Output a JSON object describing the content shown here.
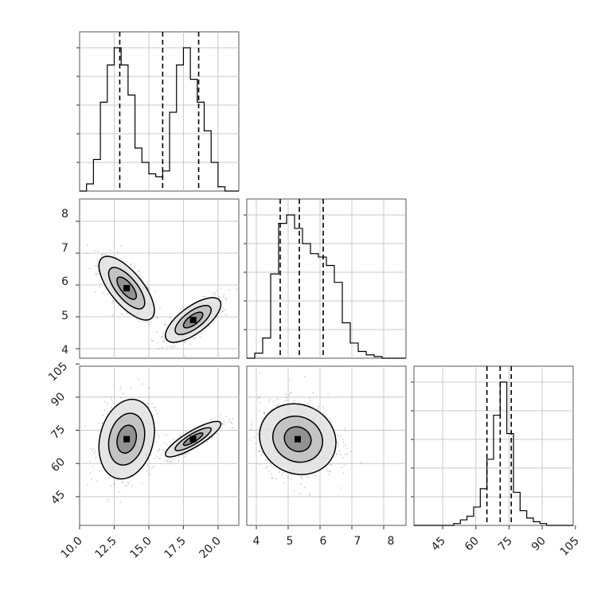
{
  "chart_data": {
    "type": "corner",
    "variables": 3,
    "ticks": {
      "x1": [
        "10.0",
        "12.5",
        "15.0",
        "17.5",
        "20.0"
      ],
      "x2": [
        "4",
        "5",
        "6",
        "7",
        "8"
      ],
      "x3": [
        "45",
        "60",
        "75",
        "90",
        "105"
      ],
      "y2": [
        "4",
        "5",
        "6",
        "7",
        "8"
      ],
      "y3": [
        "45",
        "60",
        "75",
        "90",
        "105"
      ]
    },
    "ranges": {
      "x1": [
        10.0,
        21.5
      ],
      "x2": [
        3.7,
        8.7
      ],
      "x3": [
        32,
        104
      ]
    },
    "quantiles": {
      "x1": [
        12.9,
        16.0,
        18.6
      ],
      "x2": [
        4.75,
        5.35,
        6.1
      ],
      "x3": [
        65,
        71,
        76
      ]
    },
    "hist1": {
      "bin_edges": [
        10.0,
        10.5,
        11.0,
        11.5,
        12.0,
        12.5,
        13.0,
        13.5,
        14.0,
        14.5,
        15.0,
        15.5,
        16.0,
        16.5,
        17.0,
        17.5,
        18.0,
        18.5,
        19.0,
        19.5,
        20.0,
        20.5,
        21.0,
        21.5
      ],
      "counts": [
        0,
        5,
        22,
        62,
        88,
        100,
        88,
        67,
        30,
        20,
        12,
        10,
        14,
        55,
        88,
        100,
        78,
        62,
        42,
        20,
        3,
        0,
        0
      ],
      "max": 100
    },
    "hist2": {
      "bin_edges": [
        3.7,
        3.95,
        4.2,
        4.45,
        4.7,
        4.95,
        5.2,
        5.45,
        5.7,
        5.95,
        6.2,
        6.45,
        6.7,
        6.95,
        7.2,
        7.45,
        7.7,
        7.95,
        8.2,
        8.45,
        8.7
      ],
      "counts": [
        0,
        3,
        12,
        50,
        80,
        85,
        77,
        68,
        62,
        60,
        55,
        45,
        21,
        9,
        4,
        2,
        1,
        0,
        0,
        0
      ],
      "max": 85
    },
    "hist3": {
      "bin_edges": [
        32,
        35,
        38,
        41,
        44,
        47,
        50,
        53,
        56,
        59,
        62,
        65,
        68,
        71,
        74,
        77,
        80,
        83,
        86,
        89,
        92,
        95,
        98,
        101,
        104
      ],
      "counts": [
        0,
        0,
        0,
        0,
        0,
        0,
        1,
        3,
        5,
        10,
        20,
        36,
        60,
        78,
        50,
        18,
        8,
        4,
        2,
        1,
        0,
        0,
        0,
        0
      ],
      "max": 78
    },
    "scatter_clusters": {
      "x1_x2": [
        {
          "cx": 13.4,
          "cy": 5.9,
          "sx": 1.0,
          "sy": 0.5,
          "rho": -0.7,
          "n": 500
        },
        {
          "cx": 18.2,
          "cy": 4.9,
          "sx": 1.0,
          "sy": 0.35,
          "rho": 0.7,
          "n": 500
        }
      ],
      "x1_x3": [
        {
          "cx": 13.4,
          "cy": 71,
          "sx": 1.0,
          "sy": 9.0,
          "rho": 0.2,
          "n": 500
        },
        {
          "cx": 18.2,
          "cy": 71,
          "sx": 1.0,
          "sy": 4.0,
          "rho": 0.85,
          "n": 500
        }
      ],
      "x2_x3": [
        {
          "cx": 5.3,
          "cy": 71,
          "sx": 0.6,
          "sy": 8.0,
          "rho": -0.1,
          "n": 1000
        }
      ]
    }
  }
}
